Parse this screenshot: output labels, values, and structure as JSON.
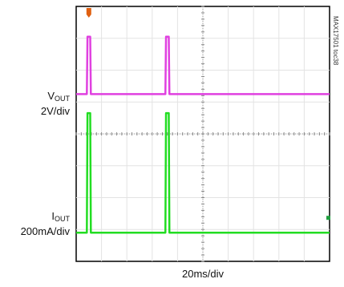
{
  "chart_data": {
    "type": "line",
    "figure_id": "MAX17501 toc38",
    "time_scale": "20ms/div",
    "divisions": {
      "x": 10,
      "y": 8
    },
    "x_range_ms": [
      0,
      200
    ],
    "channels": [
      {
        "name": "VOUT",
        "label_main": "V",
        "label_sub": "OUT",
        "scale": "2V/div",
        "color": "#e040e0",
        "baseline_div": 5.25,
        "pulse_height_div": 1.8,
        "pulses_ms": [
          10,
          72
        ]
      },
      {
        "name": "IOUT",
        "label_main": "I",
        "label_sub": "OUT",
        "scale": "200mA/div",
        "color": "#22dd22",
        "baseline_div": 0.9,
        "pulse_height_div": 3.75,
        "pulses_ms": [
          10,
          72
        ]
      }
    ],
    "trigger_marker_color": "#e06010",
    "ground_marker_color": "#20a040"
  }
}
